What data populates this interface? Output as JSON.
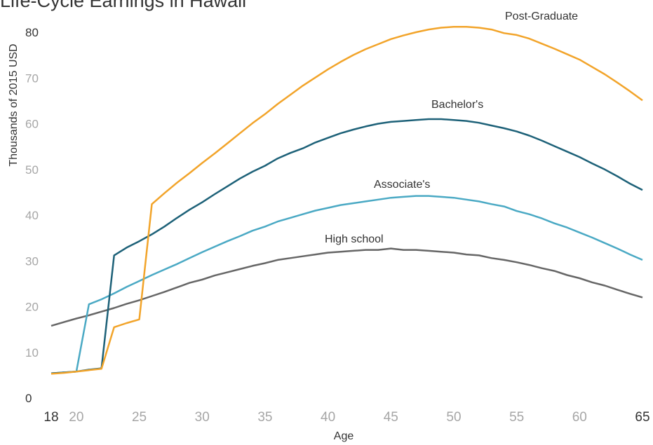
{
  "chart_data": {
    "type": "line",
    "title": "Life-Cycle Earnings in Hawaii",
    "x_label": "Age",
    "y_label": "Thousands of 2015 USD",
    "x": [
      18,
      19,
      20,
      21,
      22,
      23,
      24,
      25,
      26,
      27,
      28,
      29,
      30,
      31,
      32,
      33,
      34,
      35,
      36,
      37,
      38,
      39,
      40,
      41,
      42,
      43,
      44,
      45,
      46,
      47,
      48,
      49,
      50,
      51,
      52,
      53,
      54,
      55,
      56,
      57,
      58,
      59,
      60,
      61,
      62,
      63,
      64,
      65
    ],
    "series": [
      {
        "name": "High school",
        "color": "#666666",
        "values": [
          15.8,
          16.6,
          17.4,
          18.1,
          18.9,
          19.7,
          20.6,
          21.4,
          22.3,
          23.2,
          24.2,
          25.2,
          25.9,
          26.8,
          27.5,
          28.2,
          28.9,
          29.5,
          30.2,
          30.6,
          31.0,
          31.4,
          31.8,
          32.0,
          32.2,
          32.4,
          32.4,
          32.7,
          32.4,
          32.4,
          32.2,
          32.0,
          31.8,
          31.4,
          31.2,
          30.6,
          30.2,
          29.7,
          29.1,
          28.4,
          27.8,
          26.9,
          26.2,
          25.3,
          24.6,
          23.7,
          22.8,
          22.0
        ]
      },
      {
        "name": "Associate's",
        "color": "#4aa9c4",
        "values": [
          5.4,
          5.6,
          5.8,
          20.5,
          21.6,
          22.9,
          24.3,
          25.6,
          26.9,
          28.1,
          29.3,
          30.6,
          31.9,
          33.1,
          34.3,
          35.4,
          36.6,
          37.5,
          38.6,
          39.4,
          40.2,
          41.0,
          41.6,
          42.2,
          42.6,
          43.0,
          43.4,
          43.8,
          44.0,
          44.2,
          44.2,
          44.0,
          43.8,
          43.4,
          43.0,
          42.4,
          41.9,
          40.9,
          40.2,
          39.3,
          38.2,
          37.3,
          36.2,
          35.1,
          33.9,
          32.7,
          31.4,
          30.2
        ]
      },
      {
        "name": "Bachelor's",
        "color": "#1d6178",
        "values": [
          5.4,
          5.6,
          5.8,
          6.2,
          6.5,
          31.2,
          32.9,
          34.3,
          35.8,
          37.5,
          39.4,
          41.2,
          42.8,
          44.6,
          46.3,
          48.0,
          49.5,
          50.8,
          52.4,
          53.6,
          54.6,
          55.9,
          56.9,
          57.9,
          58.7,
          59.4,
          60.0,
          60.4,
          60.6,
          60.8,
          61.0,
          61.0,
          60.8,
          60.6,
          60.2,
          59.6,
          59.0,
          58.3,
          57.4,
          56.3,
          55.1,
          53.9,
          52.7,
          51.3,
          50.0,
          48.5,
          46.9,
          45.5
        ]
      },
      {
        "name": "Post-Graduate",
        "color": "#f2a42a",
        "values": [
          5.3,
          5.5,
          5.8,
          6.1,
          6.4,
          15.5,
          16.4,
          17.2,
          42.4,
          44.8,
          47.1,
          49.2,
          51.4,
          53.5,
          55.7,
          57.9,
          60.1,
          62.1,
          64.3,
          66.3,
          68.3,
          70.1,
          71.9,
          73.5,
          75.0,
          76.3,
          77.4,
          78.5,
          79.3,
          80.0,
          80.6,
          81.0,
          81.2,
          81.2,
          81.0,
          80.6,
          79.8,
          79.4,
          78.6,
          77.5,
          76.4,
          75.2,
          74.0,
          72.4,
          70.8,
          69.0,
          67.1,
          65.1
        ]
      }
    ],
    "xlim": [
      18,
      65
    ],
    "xticks": [
      18,
      20,
      25,
      30,
      35,
      40,
      45,
      50,
      55,
      60,
      65
    ],
    "ylim": [
      0,
      85
    ],
    "yticks": [
      0,
      10,
      20,
      30,
      40,
      50,
      60,
      70,
      80
    ],
    "grid": false
  }
}
